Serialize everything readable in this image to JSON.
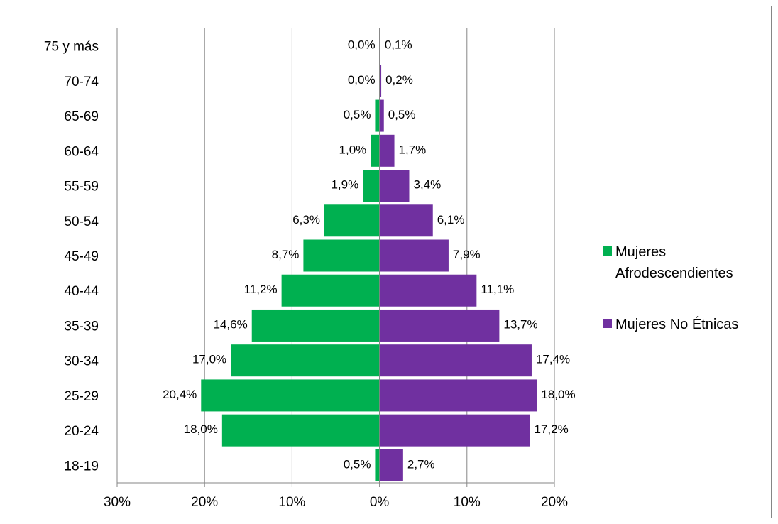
{
  "chart_data": {
    "type": "bar",
    "orientation": "horizontal",
    "title": "",
    "xlabel": "",
    "ylabel": "",
    "categories": [
      "18-19",
      "20-24",
      "25-29",
      "30-34",
      "35-39",
      "40-44",
      "45-49",
      "50-54",
      "55-59",
      "60-64",
      "65-69",
      "70-74",
      "75 y más"
    ],
    "series": [
      {
        "name": "Mujeres Afrodescendientes",
        "name_lines": [
          "Mujeres",
          "Afrodescendientes"
        ],
        "color": "#00B050",
        "side": "left",
        "values": [
          0.5,
          18.0,
          20.4,
          17.0,
          14.6,
          11.2,
          8.7,
          6.3,
          1.9,
          1.0,
          0.5,
          0.0,
          0.0
        ],
        "labels": [
          "0,5%",
          "18,0%",
          "20,4%",
          "17,0%",
          "14,6%",
          "11,2%",
          "8,7%",
          "6,3%",
          "1,9%",
          "1,0%",
          "0,5%",
          "0,0%",
          "0,0%"
        ]
      },
      {
        "name": "Mujeres No Étnicas",
        "name_lines": [
          "Mujeres No Étnicas"
        ],
        "color": "#7030A0",
        "side": "right",
        "values": [
          2.7,
          17.2,
          18.0,
          17.4,
          13.7,
          11.1,
          7.9,
          6.1,
          3.4,
          1.7,
          0.5,
          0.2,
          0.1
        ],
        "labels": [
          "2,7%",
          "17,2%",
          "18,0%",
          "17,4%",
          "13,7%",
          "11,1%",
          "7,9%",
          "6,1%",
          "3,4%",
          "1,7%",
          "0,5%",
          "0,2%",
          "0,1%"
        ]
      }
    ],
    "xlim": [
      -30,
      20
    ],
    "xticks": [
      -30,
      -20,
      -10,
      0,
      10,
      20
    ],
    "xtick_labels": [
      "30%",
      "20%",
      "10%",
      "0%",
      "10%",
      "20%"
    ],
    "grid": "vertical",
    "gridline_color": "#868686",
    "legend_position": "right"
  }
}
